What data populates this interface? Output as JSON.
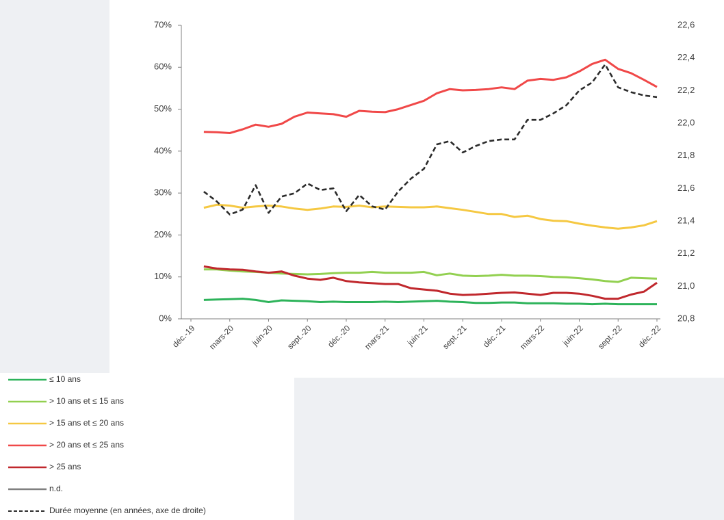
{
  "chart_data": {
    "type": "line",
    "categories": [
      "déc.-19",
      null,
      null,
      "mars-20",
      null,
      null,
      "juin-20",
      null,
      null,
      "sept.-20",
      null,
      null,
      "déc.-20",
      null,
      null,
      "mars-21",
      null,
      null,
      "juin-21",
      null,
      null,
      "sept.-21",
      null,
      null,
      "déc.-21",
      null,
      null,
      "mars-22",
      null,
      null,
      "juin-22",
      null,
      null,
      "sept.-22",
      null,
      null,
      "déc.-22"
    ],
    "series": [
      {
        "name": "≤ 10 ans",
        "color": "#2db35a",
        "values": [
          null,
          4.5,
          4.6,
          4.7,
          4.8,
          4.5,
          4.0,
          4.4,
          4.3,
          4.2,
          4.0,
          4.1,
          4.0,
          4.0,
          4.0,
          4.1,
          4.0,
          4.1,
          4.2,
          4.3,
          4.1,
          4.0,
          3.8,
          3.8,
          3.9,
          3.9,
          3.7,
          3.7,
          3.7,
          3.6,
          3.6,
          3.5,
          3.6,
          3.5,
          3.5,
          3.5,
          3.5
        ]
      },
      {
        "name": "> 10 ans et ≤ 15 ans",
        "color": "#92d050",
        "values": [
          null,
          11.8,
          11.8,
          11.5,
          11.3,
          11.2,
          11.0,
          10.8,
          10.7,
          10.6,
          10.7,
          10.9,
          11.0,
          11.0,
          11.2,
          11.0,
          11.0,
          11.0,
          11.2,
          10.4,
          10.8,
          10.3,
          10.2,
          10.3,
          10.5,
          10.3,
          10.3,
          10.2,
          10.0,
          9.9,
          9.7,
          9.4,
          9.0,
          8.8,
          9.8,
          9.7,
          9.6
        ]
      },
      {
        "name": "> 15 ans et ≤ 20 ans",
        "color": "#f5c842",
        "values": [
          null,
          26.5,
          27.2,
          27.0,
          26.5,
          26.8,
          27.0,
          26.8,
          26.3,
          26.0,
          26.3,
          26.8,
          26.7,
          27.0,
          26.6,
          26.8,
          26.7,
          26.6,
          26.6,
          26.8,
          26.4,
          26.0,
          25.5,
          25.0,
          25.0,
          24.3,
          24.6,
          23.8,
          23.4,
          23.3,
          22.7,
          22.2,
          21.8,
          21.5,
          21.8,
          22.3,
          23.3
        ]
      },
      {
        "name": "> 20 ans et ≤ 25 ans",
        "color": "#f04848",
        "values": [
          null,
          44.6,
          44.5,
          44.3,
          45.2,
          46.3,
          45.8,
          46.5,
          48.2,
          49.2,
          49.0,
          48.8,
          48.2,
          49.6,
          49.4,
          49.3,
          50.0,
          51.0,
          52.0,
          53.8,
          54.8,
          54.5,
          54.6,
          54.8,
          55.2,
          54.8,
          56.8,
          57.2,
          57.0,
          57.6,
          59.0,
          60.8,
          61.8,
          59.6,
          58.6,
          57.0,
          55.3
        ]
      },
      {
        "name": "> 25 ans",
        "color": "#c0282d",
        "values": [
          null,
          12.5,
          12.0,
          11.8,
          11.7,
          11.3,
          11.0,
          11.3,
          10.3,
          9.6,
          9.3,
          9.8,
          9.0,
          8.7,
          8.5,
          8.3,
          8.3,
          7.3,
          7.0,
          6.7,
          6.0,
          5.7,
          5.8,
          6.0,
          6.2,
          6.3,
          6.0,
          5.7,
          6.2,
          6.2,
          6.0,
          5.5,
          4.8,
          4.8,
          5.8,
          6.5,
          8.6
        ]
      },
      {
        "name": "n.d.",
        "color": "#808080",
        "values": [
          null,
          null,
          null,
          null,
          null,
          null,
          null,
          null,
          null,
          null,
          null,
          null,
          null,
          null,
          null,
          null,
          null,
          null,
          null,
          null,
          null,
          null,
          null,
          null,
          null,
          null,
          null,
          null,
          null,
          null,
          null,
          null,
          null,
          null,
          null,
          null,
          null
        ]
      },
      {
        "name": "Durée moyenne (en années, axe de droite)",
        "color": "#2b2b2b",
        "dashed": true,
        "axis": "y2",
        "values": [
          null,
          21.58,
          21.52,
          21.44,
          21.47,
          21.62,
          21.45,
          21.55,
          21.57,
          21.63,
          21.59,
          21.6,
          21.46,
          21.56,
          21.49,
          21.47,
          21.58,
          21.66,
          21.72,
          21.87,
          21.89,
          21.82,
          21.86,
          21.89,
          21.9,
          21.9,
          22.02,
          22.02,
          22.06,
          22.11,
          22.2,
          22.25,
          22.36,
          22.22,
          22.19,
          22.17,
          22.16
        ]
      }
    ],
    "ylim": [
      0,
      70
    ],
    "yticks": [
      {
        "value": 0,
        "label": "0%"
      },
      {
        "value": 10,
        "label": "10%"
      },
      {
        "value": 20,
        "label": "20%"
      },
      {
        "value": 30,
        "label": "30%"
      },
      {
        "value": 40,
        "label": "40%"
      },
      {
        "value": 50,
        "label": "50%"
      },
      {
        "value": 60,
        "label": "60%"
      },
      {
        "value": 70,
        "label": "70%"
      }
    ],
    "y2lim": [
      20.8,
      22.6
    ],
    "y2ticks": [
      {
        "value": 20.8,
        "label": "20,8"
      },
      {
        "value": 21.0,
        "label": "21,0"
      },
      {
        "value": 21.2,
        "label": "21,2"
      },
      {
        "value": 21.4,
        "label": "21,4"
      },
      {
        "value": 21.6,
        "label": "21,6"
      },
      {
        "value": 21.8,
        "label": "21,8"
      },
      {
        "value": 22.0,
        "label": "22,0"
      },
      {
        "value": 22.2,
        "label": "22,2"
      },
      {
        "value": 22.4,
        "label": "22,4"
      },
      {
        "value": 22.6,
        "label": "22,6"
      }
    ],
    "grid": false,
    "legend": "bottom-left"
  }
}
